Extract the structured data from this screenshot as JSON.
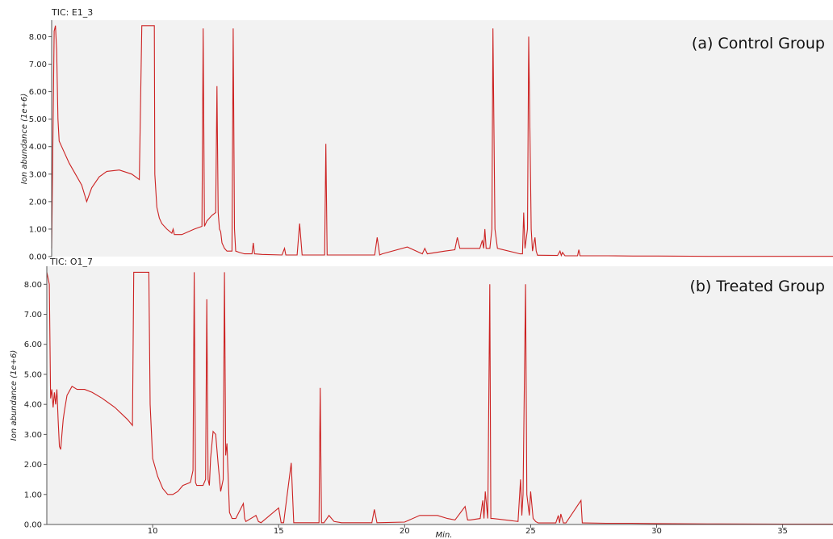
{
  "colors": {
    "trace": "#cc2222",
    "plot_bg": "#f2f2f2",
    "axis": "#555555"
  },
  "x_axis": {
    "label": "Min.",
    "ticks": [
      10,
      15,
      20,
      25,
      30,
      35
    ],
    "range": [
      5.8,
      37
    ]
  },
  "y_axis": {
    "label": "Ion abundance (1e+6)",
    "range": [
      0,
      8.6
    ],
    "ticks": [
      "0.00",
      "1.00",
      "2.00",
      "3.00",
      "4.00",
      "5.00",
      "6.00",
      "7.00",
      "8.00"
    ],
    "tick_values": [
      0,
      1,
      2,
      3,
      4,
      5,
      6,
      7,
      8
    ]
  },
  "chart_data": [
    {
      "type": "line",
      "tic_label": "TIC: E1_3",
      "group_label": "(a) Control Group",
      "xlabel": "",
      "ylabel": "Ion abundance (1e+6)",
      "series": [
        {
          "x": [
            5.8,
            5.9,
            5.95,
            6.0,
            6.05,
            6.1,
            6.2,
            6.5,
            7.0,
            7.2,
            7.4,
            7.7,
            8.0,
            8.5,
            9.0,
            9.3,
            9.4,
            9.45,
            9.5,
            9.9,
            9.92,
            10.0,
            10.1,
            10.2,
            10.4,
            10.6,
            10.65,
            10.7,
            11.0,
            11.5,
            11.8,
            11.85,
            11.9,
            11.95,
            12.0,
            12.2,
            12.35,
            12.4,
            12.45,
            12.5,
            12.55,
            12.6,
            12.7,
            12.8,
            13.0,
            13.05,
            13.1,
            13.15,
            13.3,
            13.5,
            13.8,
            13.85,
            13.9,
            14.2,
            15.0,
            15.1,
            15.15,
            15.2,
            15.6,
            15.7,
            15.8,
            16.7,
            16.75,
            16.8,
            17.5,
            18.7,
            18.8,
            18.9,
            19.0,
            20.0,
            20.6,
            20.7,
            20.8,
            21.5,
            21.9,
            22.0,
            22.1,
            22.9,
            23.0,
            23.05,
            23.1,
            23.15,
            23.3,
            23.38,
            23.42,
            23.5,
            23.6,
            24.5,
            24.6,
            24.65,
            24.7,
            24.8,
            24.85,
            24.95,
            25.0,
            25.1,
            25.15,
            25.2,
            25.3,
            26.0,
            26.1,
            26.15,
            26.2,
            26.3,
            26.8,
            26.85,
            26.9,
            27.0,
            28.0,
            29.0,
            30.0,
            32.0,
            35.0,
            37.0
          ],
          "y": [
            0.3,
            8.2,
            8.4,
            7.5,
            5.0,
            4.2,
            4.0,
            3.4,
            2.6,
            2.0,
            2.5,
            2.9,
            3.1,
            3.15,
            3.0,
            2.8,
            8.4,
            8.4,
            8.4,
            8.4,
            3.0,
            1.8,
            1.4,
            1.2,
            1.0,
            0.85,
            1.0,
            0.8,
            0.8,
            1.0,
            1.1,
            8.3,
            1.1,
            1.2,
            1.3,
            1.5,
            1.6,
            6.2,
            1.6,
            1.0,
            0.9,
            0.5,
            0.3,
            0.2,
            0.2,
            8.3,
            1.0,
            0.2,
            0.15,
            0.1,
            0.1,
            0.5,
            0.1,
            0.08,
            0.06,
            0.3,
            0.06,
            0.06,
            0.06,
            1.2,
            0.06,
            0.06,
            4.1,
            0.06,
            0.06,
            0.06,
            0.7,
            0.06,
            0.1,
            0.35,
            0.1,
            0.3,
            0.1,
            0.2,
            0.25,
            0.7,
            0.3,
            0.3,
            0.6,
            0.3,
            1.0,
            0.3,
            0.3,
            1.0,
            8.3,
            1.0,
            0.3,
            0.1,
            0.1,
            1.6,
            0.3,
            1.0,
            8.0,
            1.0,
            0.2,
            0.7,
            0.2,
            0.05,
            0.05,
            0.04,
            0.2,
            0.04,
            0.15,
            0.03,
            0.03,
            0.25,
            0.03,
            0.03,
            0.03,
            0.02,
            0.02,
            0.01,
            0.01,
            0.01
          ]
        }
      ]
    },
    {
      "type": "line",
      "tic_label": "TIC: O1_7",
      "group_label": "(b) Treated Group",
      "xlabel": "Min.",
      "ylabel": "Ion abundance (1e+6)",
      "series": [
        {
          "x": [
            5.8,
            5.9,
            5.95,
            6.0,
            6.05,
            6.1,
            6.15,
            6.2,
            6.25,
            6.3,
            6.35,
            6.4,
            6.45,
            6.5,
            6.6,
            6.8,
            7.0,
            7.3,
            7.6,
            8.0,
            8.5,
            9.0,
            9.2,
            9.25,
            9.3,
            9.85,
            9.9,
            10.0,
            10.2,
            10.4,
            10.6,
            10.8,
            11.0,
            11.2,
            11.5,
            11.6,
            11.65,
            11.7,
            11.75,
            11.8,
            12.0,
            12.1,
            12.15,
            12.2,
            12.25,
            12.3,
            12.4,
            12.5,
            12.6,
            12.7,
            12.8,
            12.85,
            12.9,
            12.95,
            13.0,
            13.05,
            13.1,
            13.15,
            13.2,
            13.3,
            13.6,
            13.65,
            13.7,
            14.1,
            14.2,
            14.3,
            15.0,
            15.1,
            15.15,
            15.2,
            15.5,
            15.6,
            15.7,
            16.6,
            16.65,
            16.7,
            16.8,
            17.0,
            17.1,
            17.2,
            17.5,
            18.0,
            18.7,
            18.8,
            18.9,
            20.0,
            20.6,
            20.7,
            21.0,
            21.3,
            21.7,
            22.0,
            22.4,
            22.5,
            22.6,
            23.0,
            23.1,
            23.15,
            23.2,
            23.3,
            23.38,
            23.42,
            23.5,
            24.5,
            24.6,
            24.65,
            24.7,
            24.8,
            24.85,
            24.95,
            25.0,
            25.1,
            25.15,
            25.2,
            25.3,
            26.0,
            26.1,
            26.15,
            26.2,
            26.3,
            26.35,
            26.4,
            27.0,
            27.05,
            27.1,
            28.0,
            29.0,
            30.0,
            32.0,
            35.0,
            37.0
          ],
          "y": [
            8.4,
            8.0,
            4.2,
            4.5,
            3.9,
            4.4,
            4.0,
            4.5,
            3.5,
            2.6,
            2.5,
            3.0,
            3.5,
            3.8,
            4.3,
            4.6,
            4.5,
            4.5,
            4.4,
            4.2,
            3.9,
            3.5,
            3.3,
            8.4,
            8.4,
            8.4,
            4.0,
            2.2,
            1.6,
            1.2,
            1.0,
            1.0,
            1.1,
            1.3,
            1.4,
            1.8,
            8.4,
            1.4,
            1.3,
            1.3,
            1.3,
            1.5,
            7.5,
            1.5,
            1.3,
            2.2,
            3.1,
            3.0,
            2.0,
            1.1,
            1.5,
            8.4,
            2.3,
            2.7,
            1.5,
            0.4,
            0.3,
            0.2,
            0.2,
            0.2,
            0.7,
            0.2,
            0.1,
            0.3,
            0.1,
            0.06,
            0.55,
            0.06,
            0.06,
            0.06,
            2.05,
            0.06,
            0.06,
            0.06,
            4.55,
            0.06,
            0.06,
            0.3,
            0.2,
            0.1,
            0.06,
            0.06,
            0.06,
            0.5,
            0.06,
            0.08,
            0.3,
            0.3,
            0.3,
            0.3,
            0.2,
            0.15,
            0.6,
            0.15,
            0.15,
            0.2,
            0.8,
            0.2,
            1.1,
            0.2,
            8.0,
            0.2,
            0.2,
            0.1,
            1.5,
            0.3,
            1.0,
            8.0,
            1.0,
            0.3,
            1.1,
            0.2,
            0.15,
            0.1,
            0.05,
            0.05,
            0.3,
            0.05,
            0.35,
            0.05,
            0.05,
            0.05,
            0.8,
            0.05,
            0.05,
            0.04,
            0.04,
            0.03,
            0.02,
            0.01,
            0.01
          ]
        }
      ]
    }
  ]
}
